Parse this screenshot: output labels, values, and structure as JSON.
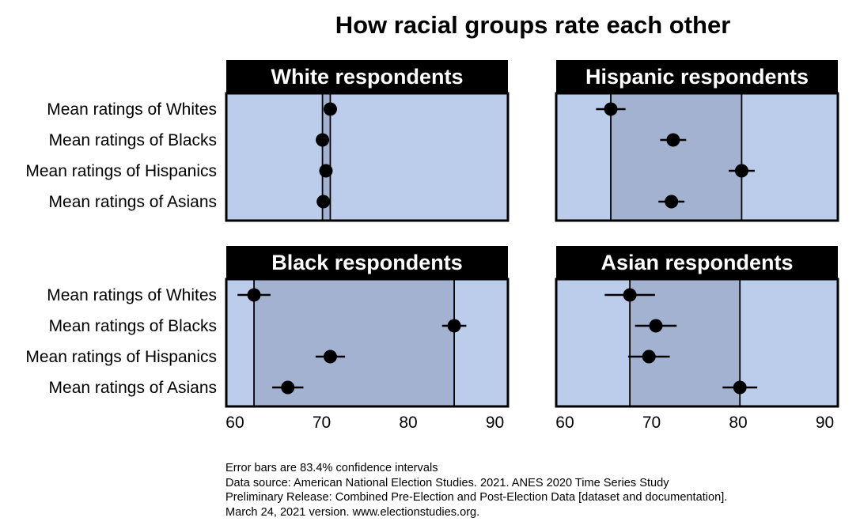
{
  "title": "How racial groups rate each other",
  "chart_data": {
    "type": "dot",
    "title": "How racial groups rate each other",
    "categories": [
      "Mean ratings of Whites",
      "Mean ratings of Blacks",
      "Mean ratings of Hispanics",
      "Mean ratings of Asians"
    ],
    "x_ticks": [
      60,
      70,
      80,
      90
    ],
    "xlim": [
      59,
      91.5
    ],
    "error_bars": "83.4% confidence intervals",
    "shaded_band": "range between the lowest and highest group mean",
    "colors": {
      "panel_bg": "#bccdec",
      "band": "#a3b2d1",
      "header_bg": "#000000",
      "header_text": "#ffffff",
      "dot": "#000000"
    },
    "panels": [
      {
        "name": "White respondents",
        "series": [
          {
            "category": "Mean ratings of Whites",
            "value": 71.0,
            "low": 71.0,
            "high": 71.0
          },
          {
            "category": "Mean ratings of Blacks",
            "value": 70.1,
            "low": 70.1,
            "high": 70.1
          },
          {
            "category": "Mean ratings of Hispanics",
            "value": 70.5,
            "low": 70.5,
            "high": 70.5
          },
          {
            "category": "Mean ratings of Asians",
            "value": 70.2,
            "low": 70.2,
            "high": 70.2
          }
        ],
        "band": [
          70.1,
          71.0
        ]
      },
      {
        "name": "Hispanic respondents",
        "series": [
          {
            "category": "Mean ratings of Whites",
            "value": 65.3,
            "low": 63.6,
            "high": 67.0
          },
          {
            "category": "Mean ratings of Blacks",
            "value": 72.5,
            "low": 71.0,
            "high": 74.0
          },
          {
            "category": "Mean ratings of Hispanics",
            "value": 80.4,
            "low": 78.9,
            "high": 81.9
          },
          {
            "category": "Mean ratings of Asians",
            "value": 72.3,
            "low": 70.8,
            "high": 73.8
          }
        ],
        "band": [
          65.3,
          80.4
        ]
      },
      {
        "name": "Black respondents",
        "series": [
          {
            "category": "Mean ratings of Whites",
            "value": 62.2,
            "low": 60.3,
            "high": 64.1
          },
          {
            "category": "Mean ratings of Blacks",
            "value": 85.3,
            "low": 83.9,
            "high": 86.7
          },
          {
            "category": "Mean ratings of Hispanics",
            "value": 71.0,
            "low": 69.3,
            "high": 72.7
          },
          {
            "category": "Mean ratings of Asians",
            "value": 66.1,
            "low": 64.3,
            "high": 67.9
          }
        ],
        "band": [
          62.2,
          85.3
        ]
      },
      {
        "name": "Asian respondents",
        "series": [
          {
            "category": "Mean ratings of Whites",
            "value": 67.5,
            "low": 64.6,
            "high": 70.4
          },
          {
            "category": "Mean ratings of Blacks",
            "value": 70.5,
            "low": 68.1,
            "high": 72.9
          },
          {
            "category": "Mean ratings of Hispanics",
            "value": 69.7,
            "low": 67.3,
            "high": 72.1
          },
          {
            "category": "Mean ratings of Asians",
            "value": 80.2,
            "low": 78.2,
            "high": 82.2
          }
        ],
        "band": [
          67.5,
          80.2
        ]
      }
    ]
  },
  "notes": [
    "Error bars are 83.4% confidence intervals",
    "Data source: American National Election Studies. 2021. ANES 2020 Time Series Study",
    "Preliminary Release: Combined Pre-Election and Post-Election Data [dataset and documentation].",
    "March 24, 2021 version. www.electionstudies.org."
  ]
}
